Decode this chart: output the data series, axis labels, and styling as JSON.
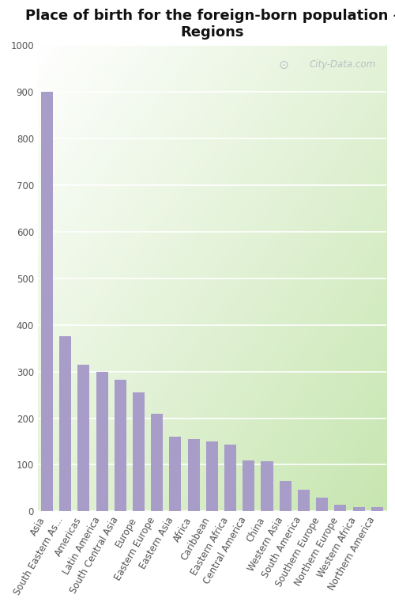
{
  "title": "Place of birth for the foreign-born population -\nRegions",
  "categories": [
    "Asia",
    "South Eastern As...",
    "Americas",
    "Latin America",
    "South Central Asia",
    "Europe",
    "Eastern Europe",
    "Eastern Asia",
    "Africa",
    "Caribbean",
    "Eastern Africa",
    "Central America",
    "China",
    "Western Asia",
    "South America",
    "Southern Europe",
    "Northern Europe",
    "Western Africa",
    "Northern America"
  ],
  "values": [
    900,
    375,
    315,
    300,
    282,
    255,
    210,
    160,
    155,
    150,
    143,
    110,
    108,
    65,
    47,
    30,
    14,
    10,
    10
  ],
  "bar_color": "#a89cc8",
  "fig_bg": "#ffffff",
  "plot_bg_topleft": "#ffffff",
  "plot_bg_botright": "#c8e6b0",
  "ylim": [
    0,
    1000
  ],
  "yticks": [
    0,
    100,
    200,
    300,
    400,
    500,
    600,
    700,
    800,
    900,
    1000
  ],
  "title_fontsize": 13,
  "tick_fontsize": 8.5,
  "watermark": "City-Data.com"
}
